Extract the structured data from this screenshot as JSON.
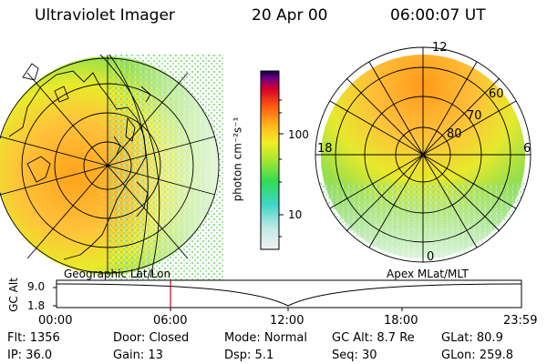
{
  "header": {
    "title": "Ultraviolet Imager",
    "date": "20 Apr 00",
    "time": "06:00:07 UT"
  },
  "colorbar": {
    "unit_label": "photon cm⁻²s⁻¹",
    "ticks": [
      "100",
      "10"
    ]
  },
  "left_map": {
    "caption": "Geographic Lat/Lon"
  },
  "right_map": {
    "caption": "Apex MLat/MLT",
    "mlt_labels": {
      "top": "12",
      "left": "18",
      "right": "6",
      "bottom": "0"
    },
    "lat_labels": [
      "60",
      "70",
      "80"
    ]
  },
  "altitude_plot": {
    "ylabel": "GC Alt",
    "yticks": [
      "9.0",
      "1.8"
    ],
    "xticks": [
      "00:00",
      "06:00",
      "12:00",
      "18:00",
      "23:59"
    ]
  },
  "status": {
    "flt": "Flt:  1356",
    "ip": "IP:  36.0",
    "door": "Door:  Closed",
    "gain": "Gain:  13",
    "mode": "Mode:  Normal",
    "dsp": "Dsp:      5.1",
    "gc_alt": "GC Alt:  8.7 Re",
    "seq": "Seq:  30",
    "glat": "GLat:   80.9",
    "glon": "GLon:  259.8"
  }
}
